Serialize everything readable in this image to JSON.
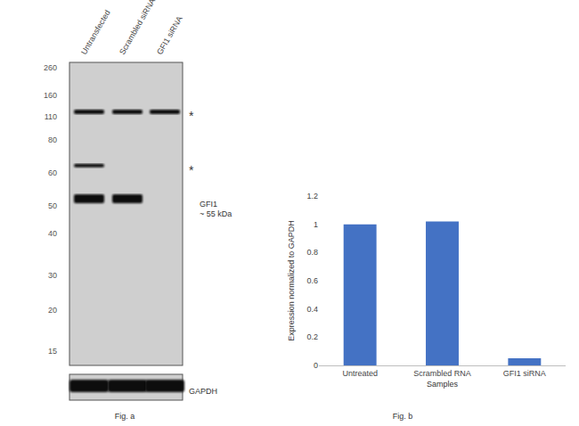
{
  "chart_data": {
    "type": "bar",
    "categories": [
      "Untreated",
      "Scrambled RNA",
      "GFI1 siRNA"
    ],
    "values": [
      1.0,
      1.02,
      0.05
    ],
    "color": "#4472c4",
    "x_label": "Samples",
    "y_label": "Expression normalized to GAPDH",
    "ylim": [
      0,
      1.2
    ],
    "yticks": [
      0,
      0.2,
      0.4,
      0.6,
      0.8,
      1,
      1.2
    ],
    "grid": false,
    "caption": "Fig. b"
  },
  "blot": {
    "caption": "Fig. a",
    "lanes": [
      "Untransfected",
      "Scrambled siRNA",
      "GFI1 siRNA"
    ],
    "markers": [
      260,
      160,
      110,
      80,
      60,
      50,
      40,
      30,
      20,
      15
    ],
    "bands": [
      {
        "kda": 120,
        "lanes": [
          0,
          1,
          2
        ],
        "label": "*"
      },
      {
        "kda": 64,
        "lanes": [
          0
        ],
        "label": "*"
      },
      {
        "kda": 52,
        "lanes": [
          0,
          1
        ],
        "label": "GFI1",
        "sublabel": "~ 55 kDa"
      }
    ],
    "loading_control": {
      "label": "GAPDH",
      "lanes": [
        0,
        1,
        2
      ]
    }
  }
}
